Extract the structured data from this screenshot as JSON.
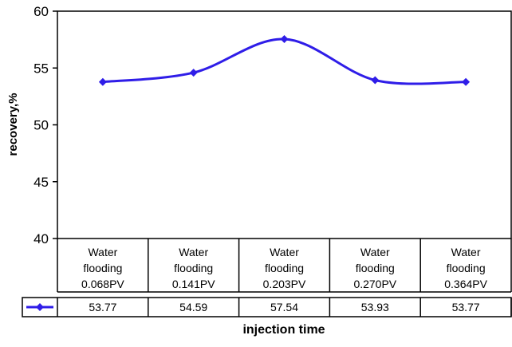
{
  "chart_data": {
    "type": "line",
    "categories": [
      "Water flooding 0.068PV",
      "Water flooding 0.141PV",
      "Water flooding 0.203PV",
      "Water flooding 0.270PV",
      "Water flooding 0.364PV"
    ],
    "category_lines": [
      [
        "Water",
        "flooding",
        "0.068PV"
      ],
      [
        "Water",
        "flooding",
        "0.141PV"
      ],
      [
        "Water",
        "flooding",
        "0.203PV"
      ],
      [
        "Water",
        "flooding",
        "0.270PV"
      ],
      [
        "Water",
        "flooding",
        "0.364PV"
      ]
    ],
    "series": [
      {
        "values": [
          53.77,
          54.59,
          57.54,
          53.93,
          53.77
        ],
        "value_labels": [
          "53.77",
          "54.59",
          "57.54",
          "53.93",
          "53.77"
        ],
        "color": "#2f1de8",
        "marker": "diamond"
      }
    ],
    "xlabel": "injection time",
    "ylabel": "recovery,%",
    "ylim": [
      40,
      60
    ],
    "yticks": [
      40,
      45,
      50,
      55,
      60
    ],
    "ytick_labels": [
      "40",
      "45",
      "50",
      "55",
      "60"
    ],
    "grid": false,
    "legend": "data-table",
    "smooth": true
  }
}
